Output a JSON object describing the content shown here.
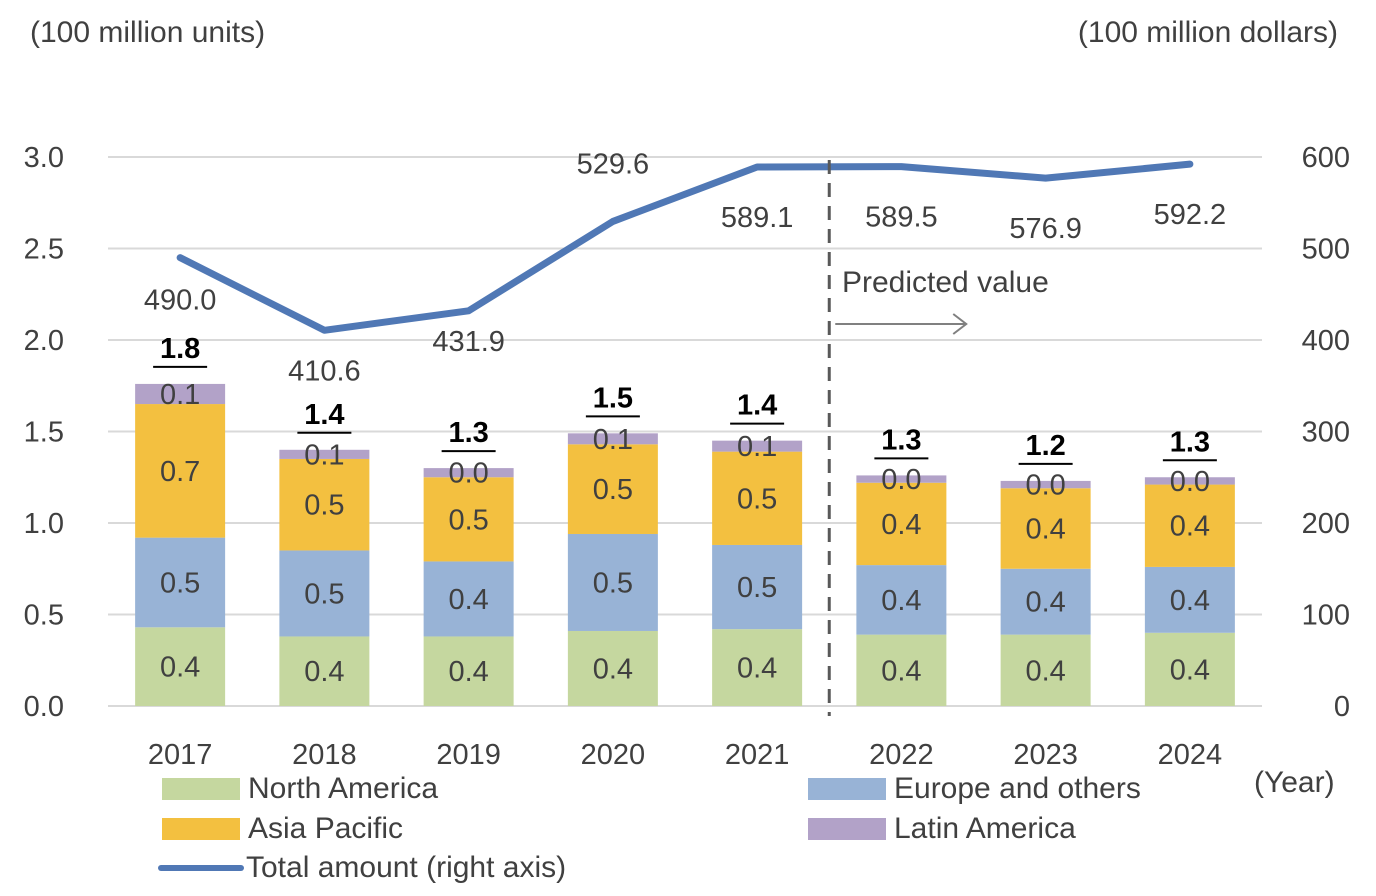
{
  "units": {
    "left": "(100 million units)",
    "right": "(100 million dollars)",
    "x": "(Year)"
  },
  "annotation": {
    "predicted": "Predicted value"
  },
  "colors": {
    "north_america": "#c5d79f",
    "europe": "#98b3d6",
    "asia_pacific": "#f3c040",
    "latin_america": "#b2a2c8",
    "total": "#5078b5",
    "grid": "#d9d9d9",
    "text": "#404040"
  },
  "legend": [
    {
      "key": "north_america",
      "label": "North America",
      "kind": "box"
    },
    {
      "key": "europe",
      "label": "Europe and others",
      "kind": "box"
    },
    {
      "key": "asia_pacific",
      "label": "Asia Pacific",
      "kind": "box"
    },
    {
      "key": "latin_america",
      "label": "Latin America",
      "kind": "box"
    },
    {
      "key": "total",
      "label": "Total amount (right axis)",
      "kind": "line"
    }
  ],
  "chart_data": {
    "type": "bar",
    "stacked": true,
    "categories": [
      "2017",
      "2018",
      "2019",
      "2020",
      "2021",
      "2022",
      "2023",
      "2024"
    ],
    "series": [
      {
        "name": "North America",
        "key": "north_america",
        "values": [
          0.43,
          0.38,
          0.38,
          0.41,
          0.42,
          0.39,
          0.39,
          0.4
        ],
        "labels": [
          "0.4",
          "0.4",
          "0.4",
          "0.4",
          "0.4",
          "0.4",
          "0.4",
          "0.4"
        ]
      },
      {
        "name": "Europe and others",
        "key": "europe",
        "values": [
          0.49,
          0.47,
          0.41,
          0.53,
          0.46,
          0.38,
          0.36,
          0.36
        ],
        "labels": [
          "0.5",
          "0.5",
          "0.4",
          "0.5",
          "0.5",
          "0.4",
          "0.4",
          "0.4"
        ]
      },
      {
        "name": "Asia Pacific",
        "key": "asia_pacific",
        "values": [
          0.73,
          0.5,
          0.46,
          0.49,
          0.51,
          0.45,
          0.44,
          0.45
        ],
        "labels": [
          "0.7",
          "0.5",
          "0.5",
          "0.5",
          "0.5",
          "0.4",
          "0.4",
          "0.4"
        ]
      },
      {
        "name": "Latin America",
        "key": "latin_america",
        "values": [
          0.11,
          0.05,
          0.05,
          0.06,
          0.06,
          0.04,
          0.04,
          0.04
        ],
        "labels": [
          "0.1",
          "0.1",
          "0.0",
          "0.1",
          "0.1",
          "0.0",
          "0.0",
          "0.0"
        ]
      }
    ],
    "totals": [
      "1.8",
      "1.4",
      "1.3",
      "1.5",
      "1.4",
      "1.3",
      "1.2",
      "1.3"
    ],
    "line_series": {
      "name": "Total amount (right axis)",
      "axis": "right",
      "values": [
        490.0,
        410.6,
        431.9,
        529.6,
        589.1,
        589.5,
        576.9,
        592.2
      ],
      "labels": [
        "490.0",
        "410.6",
        "431.9",
        "529.6",
        "589.1",
        "589.5",
        "576.9",
        "592.2"
      ]
    },
    "y_left": {
      "range": [
        0,
        3.0
      ],
      "ticks": [
        "0.0",
        "0.5",
        "1.0",
        "1.5",
        "2.0",
        "2.5",
        "3.0"
      ]
    },
    "y_right": {
      "range": [
        0,
        600
      ],
      "ticks": [
        "0",
        "100",
        "200",
        "300",
        "400",
        "500",
        "600"
      ]
    },
    "predicted_from": "2022",
    "grid": true,
    "legend_position": "bottom"
  }
}
